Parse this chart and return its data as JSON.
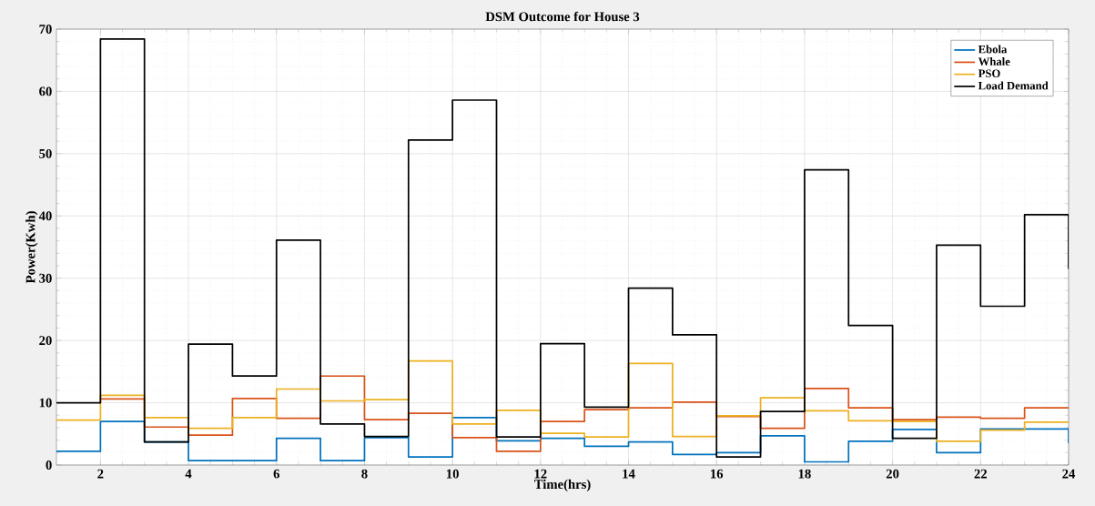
{
  "chart_data": {
    "type": "step",
    "title": "DSM Outcome for House 3",
    "xlabel": "Time(hrs)",
    "ylabel": "Power(Kwh)",
    "x": [
      1,
      2,
      3,
      4,
      5,
      6,
      7,
      8,
      9,
      10,
      11,
      12,
      13,
      14,
      15,
      16,
      17,
      18,
      19,
      20,
      21,
      22,
      23,
      24
    ],
    "series": [
      {
        "name": "Ebola",
        "color": "#0072bd",
        "values": [
          2.2,
          7,
          3.7,
          0.7,
          0.7,
          4.3,
          0.7,
          4.4,
          1.3,
          7.6,
          3.9,
          4.3,
          3.0,
          3.7,
          1.7,
          2.0,
          4.7,
          0.5,
          3.8,
          5.7,
          2.0,
          5.8,
          5.8,
          3.5
        ]
      },
      {
        "name": "Whale",
        "color": "#d95319",
        "values": [
          null,
          10.6,
          6.1,
          4.8,
          10.7,
          7.5,
          14.3,
          7.3,
          8.3,
          4.4,
          2.2,
          7.0,
          8.9,
          9.2,
          10.1,
          7.8,
          5.9,
          12.3,
          9.2,
          7.3,
          7.7,
          7.5,
          9.2,
          9.2
        ]
      },
      {
        "name": "PSO",
        "color": "#edb120",
        "values": [
          7.2,
          11.2,
          7.6,
          5.9,
          7.6,
          12.2,
          10.3,
          10.5,
          16.7,
          6.6,
          8.8,
          5.1,
          4.5,
          16.3,
          4.6,
          7.9,
          10.8,
          8.7,
          7.1,
          7.0,
          3.8,
          5.6,
          6.9,
          6.9
        ]
      },
      {
        "name": "Load Demand",
        "color": "#000000",
        "values": [
          10,
          68.4,
          3.7,
          19.4,
          14.3,
          36.1,
          6.6,
          4.6,
          52.2,
          58.6,
          4.5,
          19.5,
          9.3,
          28.4,
          20.9,
          1.3,
          8.6,
          47.4,
          22.4,
          4.3,
          35.3,
          25.5,
          40.2,
          31.5
        ]
      }
    ],
    "xlim": [
      1,
      24
    ],
    "xticks": [
      2,
      4,
      6,
      8,
      10,
      12,
      14,
      16,
      18,
      20,
      22,
      24
    ],
    "ylim": [
      0,
      70
    ],
    "yticks": [
      0,
      10,
      20,
      30,
      40,
      50,
      60,
      70
    ],
    "grid": true,
    "legend": "top right"
  }
}
